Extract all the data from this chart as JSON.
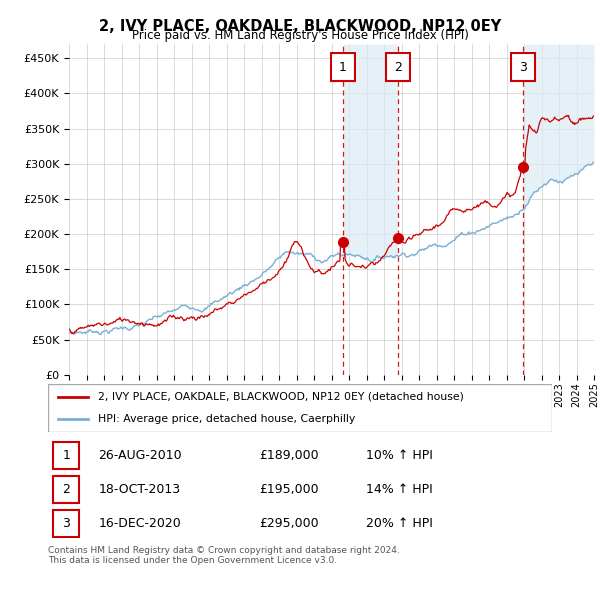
{
  "title": "2, IVY PLACE, OAKDALE, BLACKWOOD, NP12 0EY",
  "subtitle": "Price paid vs. HM Land Registry's House Price Index (HPI)",
  "ylim": [
    0,
    470000
  ],
  "yticks": [
    0,
    50000,
    100000,
    150000,
    200000,
    250000,
    300000,
    350000,
    400000,
    450000
  ],
  "legend_line1": "2, IVY PLACE, OAKDALE, BLACKWOOD, NP12 0EY (detached house)",
  "legend_line2": "HPI: Average price, detached house, Caerphilly",
  "transactions": [
    {
      "label": "1",
      "date": "26-AUG-2010",
      "price": "£189,000",
      "hpi": "10% ↑ HPI",
      "year": 2010.65
    },
    {
      "label": "2",
      "date": "18-OCT-2013",
      "price": "£195,000",
      "hpi": "14% ↑ HPI",
      "year": 2013.79
    },
    {
      "label": "3",
      "date": "16-DEC-2020",
      "price": "£295,000",
      "hpi": "20% ↑ HPI",
      "year": 2020.96
    }
  ],
  "transaction_prices": [
    189000,
    195000,
    295000
  ],
  "red_line_color": "#cc0000",
  "blue_line_color": "#7ab0d4",
  "blue_fill_color": "#daeaf5",
  "vline_color": "#cc0000",
  "background_color": "#ffffff",
  "grid_color": "#cccccc",
  "footer_text": "Contains HM Land Registry data © Crown copyright and database right 2024.\nThis data is licensed under the Open Government Licence v3.0.",
  "start_year": 1995,
  "end_year": 2025
}
